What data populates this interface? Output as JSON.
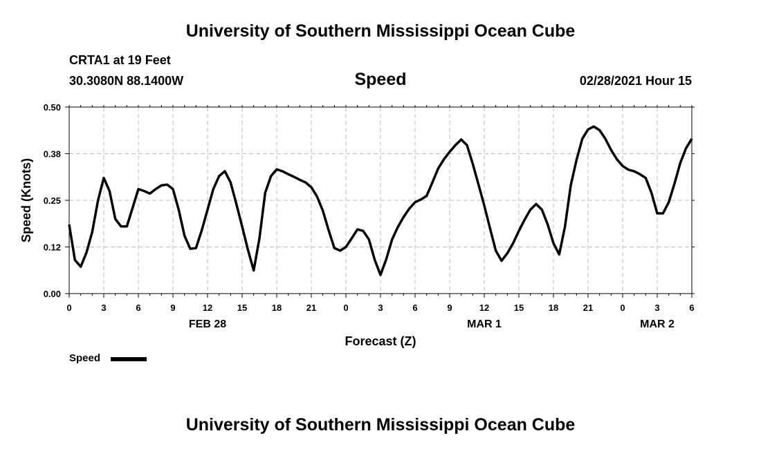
{
  "header": {
    "top_title": "University of Southern Mississippi Ocean Cube",
    "station": "CRTA1 at 19 Feet",
    "coords": "30.3080N 88.1400W",
    "variable": "Speed",
    "datetime": "02/28/2021 Hour 15"
  },
  "footer": {
    "bottom_title": "University of Southern Mississippi Ocean Cube"
  },
  "legend": {
    "label": "Speed"
  },
  "colors": {
    "line": "#000000",
    "grid": "#bdbdbd"
  },
  "chart_data": {
    "type": "line",
    "title": "Speed",
    "xlabel": "Forecast (Z)",
    "ylabel": "Speed (Knots)",
    "xlim": [
      0,
      54
    ],
    "ylim": [
      0,
      0.5
    ],
    "grid": true,
    "yticks": [
      "0.00",
      "0.12",
      "0.25",
      "0.38",
      "0.50"
    ],
    "xticks": [
      "0",
      "3",
      "6",
      "9",
      "12",
      "15",
      "18",
      "21",
      "0",
      "3",
      "6",
      "9",
      "12",
      "15",
      "18",
      "21",
      "0",
      "3",
      "6"
    ],
    "date_labels": [
      {
        "label": "FEB 28",
        "hour": 12
      },
      {
        "label": "MAR 1",
        "hour": 36
      },
      {
        "label": "MAR 2",
        "hour": 51
      }
    ],
    "series": [
      {
        "name": "Speed",
        "x": [
          0,
          0.5,
          1,
          1.5,
          2,
          2.5,
          3,
          3.5,
          4,
          4.5,
          5,
          5.5,
          6,
          6.5,
          7,
          7.5,
          8,
          8.5,
          9,
          9.5,
          10,
          10.5,
          11,
          11.5,
          12,
          12.5,
          13,
          13.5,
          14,
          14.5,
          15,
          15.5,
          16,
          16.5,
          17,
          17.5,
          18,
          18.5,
          19,
          19.5,
          20,
          20.5,
          21,
          21.5,
          22,
          22.5,
          23,
          23.5,
          24,
          24.5,
          25,
          25.5,
          26,
          26.5,
          27,
          27.5,
          28,
          28.5,
          29,
          29.5,
          30,
          30.5,
          31,
          31.5,
          32,
          32.5,
          33,
          33.5,
          34,
          34.5,
          35,
          35.5,
          36,
          36.5,
          37,
          37.5,
          38,
          38.5,
          39,
          39.5,
          40,
          40.5,
          41,
          41.5,
          42,
          42.5,
          43,
          43.5,
          44,
          44.5,
          45,
          45.5,
          46,
          46.5,
          47,
          47.5,
          48,
          48.5,
          49,
          49.5,
          50,
          50.5,
          51,
          51.5,
          52,
          52.5,
          53,
          53.5,
          54
        ],
        "values": [
          0.185,
          0.09,
          0.072,
          0.11,
          0.165,
          0.25,
          0.31,
          0.275,
          0.2,
          0.18,
          0.18,
          0.23,
          0.28,
          0.275,
          0.268,
          0.28,
          0.29,
          0.292,
          0.28,
          0.225,
          0.155,
          0.12,
          0.122,
          0.17,
          0.225,
          0.28,
          0.315,
          0.328,
          0.298,
          0.24,
          0.18,
          0.118,
          0.062,
          0.148,
          0.27,
          0.315,
          0.333,
          0.328,
          0.32,
          0.313,
          0.305,
          0.298,
          0.285,
          0.26,
          0.222,
          0.17,
          0.122,
          0.115,
          0.125,
          0.148,
          0.172,
          0.168,
          0.145,
          0.09,
          0.05,
          0.092,
          0.145,
          0.178,
          0.205,
          0.228,
          0.245,
          0.252,
          0.262,
          0.298,
          0.335,
          0.36,
          0.38,
          0.398,
          0.413,
          0.398,
          0.348,
          0.292,
          0.236,
          0.175,
          0.115,
          0.088,
          0.108,
          0.135,
          0.168,
          0.198,
          0.225,
          0.24,
          0.225,
          0.185,
          0.135,
          0.105,
          0.18,
          0.29,
          0.358,
          0.415,
          0.44,
          0.448,
          0.438,
          0.415,
          0.385,
          0.36,
          0.342,
          0.332,
          0.328,
          0.32,
          0.31,
          0.27,
          0.215,
          0.215,
          0.245,
          0.295,
          0.35,
          0.39,
          0.415
        ]
      }
    ]
  }
}
